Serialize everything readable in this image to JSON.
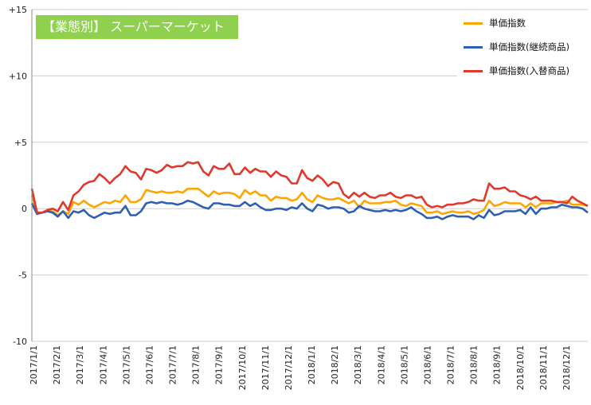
{
  "chart_data": {
    "type": "line",
    "title": "【業態別】 スーパーマーケット",
    "title_bg_color": "#8fd14f",
    "ylim": [
      -10,
      15
    ],
    "y_ticks": [
      15,
      10,
      5,
      0,
      -5,
      -10
    ],
    "y_tick_labels": [
      "+15",
      "+10",
      "+5",
      "0",
      "-5",
      "-10"
    ],
    "grid": "horizontal",
    "legend_position": "top-right",
    "x_tick_labels": [
      "2017/1/1",
      "2017/2/1",
      "2017/3/1",
      "2017/4/1",
      "2017/5/1",
      "2017/6/1",
      "2017/7/1",
      "2017/8/1",
      "2017/9/1",
      "2017/10/1",
      "2017/11/1",
      "2017/12/1",
      "2018/1/1",
      "2018/2/1",
      "2018/3/1",
      "2018/4/1",
      "2018/5/1",
      "2018/6/1",
      "2018/7/1",
      "2018/8/1",
      "2018/9/1",
      "2018/10/1",
      "2018/11/1",
      "2018/12/1"
    ],
    "x_interval": "weekly (2017/1/1 – 2018/12/31)",
    "series": [
      {
        "name": "単価指数",
        "color": "#ffa500",
        "values": [
          1.0,
          -0.3,
          -0.3,
          -0.2,
          -0.2,
          -0.5,
          -0.2,
          -0.4,
          0.5,
          0.3,
          0.6,
          0.3,
          0.1,
          0.3,
          0.5,
          0.4,
          0.6,
          0.5,
          1.0,
          0.5,
          0.5,
          0.7,
          1.4,
          1.3,
          1.2,
          1.3,
          1.2,
          1.2,
          1.3,
          1.2,
          1.5,
          1.5,
          1.5,
          1.2,
          0.9,
          1.3,
          1.1,
          1.2,
          1.2,
          1.1,
          0.8,
          1.4,
          1.1,
          1.3,
          1.0,
          1.0,
          0.6,
          0.9,
          0.8,
          0.8,
          0.6,
          0.7,
          1.2,
          0.7,
          0.5,
          1.0,
          0.8,
          0.7,
          0.7,
          0.8,
          0.6,
          0.4,
          0.6,
          0.1,
          0.6,
          0.4,
          0.4,
          0.4,
          0.5,
          0.5,
          0.6,
          0.3,
          0.2,
          0.4,
          0.3,
          0.2,
          -0.3,
          -0.3,
          -0.2,
          -0.4,
          -0.3,
          -0.2,
          -0.3,
          -0.3,
          -0.2,
          -0.4,
          -0.3,
          -0.1,
          0.6,
          0.2,
          0.3,
          0.5,
          0.4,
          0.4,
          0.4,
          0.1,
          0.4,
          0.1,
          0.4,
          0.4,
          0.4,
          0.5,
          0.5,
          0.6,
          0.3,
          0.3,
          0.3,
          0.2
        ]
      },
      {
        "name": "単価指数(継続商品)",
        "color": "#2e5fb5",
        "values": [
          0.4,
          -0.4,
          -0.3,
          -0.2,
          -0.3,
          -0.6,
          -0.2,
          -0.7,
          -0.2,
          -0.3,
          -0.1,
          -0.5,
          -0.7,
          -0.5,
          -0.3,
          -0.4,
          -0.3,
          -0.3,
          0.2,
          -0.5,
          -0.5,
          -0.2,
          0.4,
          0.5,
          0.4,
          0.5,
          0.4,
          0.4,
          0.3,
          0.4,
          0.6,
          0.5,
          0.3,
          0.1,
          0.0,
          0.4,
          0.4,
          0.3,
          0.3,
          0.2,
          0.2,
          0.5,
          0.2,
          0.4,
          0.1,
          -0.1,
          -0.1,
          0.0,
          0.0,
          -0.1,
          0.1,
          0.0,
          0.4,
          0.0,
          -0.2,
          0.3,
          0.2,
          0.0,
          0.1,
          0.1,
          0.0,
          -0.3,
          -0.2,
          0.2,
          0.0,
          -0.1,
          -0.2,
          -0.2,
          -0.1,
          -0.2,
          -0.1,
          -0.2,
          -0.1,
          0.1,
          -0.2,
          -0.4,
          -0.7,
          -0.7,
          -0.6,
          -0.8,
          -0.6,
          -0.5,
          -0.6,
          -0.6,
          -0.6,
          -0.8,
          -0.5,
          -0.7,
          -0.1,
          -0.5,
          -0.4,
          -0.2,
          -0.2,
          -0.2,
          -0.1,
          -0.4,
          0.1,
          -0.4,
          0.0,
          0.0,
          0.1,
          0.1,
          0.3,
          0.2,
          0.1,
          0.1,
          0.0,
          -0.3
        ]
      },
      {
        "name": "単価指数(入替商品)",
        "color": "#e0392b",
        "values": [
          1.5,
          -0.3,
          -0.3,
          -0.1,
          0.0,
          -0.2,
          0.5,
          -0.1,
          1.0,
          1.3,
          1.8,
          2.0,
          2.1,
          2.6,
          2.3,
          1.9,
          2.3,
          2.6,
          3.2,
          2.8,
          2.7,
          2.2,
          3.0,
          2.9,
          2.7,
          2.9,
          3.3,
          3.1,
          3.2,
          3.2,
          3.5,
          3.4,
          3.5,
          2.8,
          2.5,
          3.2,
          3.0,
          3.0,
          3.4,
          2.6,
          2.6,
          3.1,
          2.7,
          3.0,
          2.8,
          2.8,
          2.4,
          2.8,
          2.5,
          2.4,
          1.9,
          1.9,
          2.9,
          2.3,
          2.1,
          2.5,
          2.2,
          1.7,
          2.0,
          1.9,
          1.1,
          0.8,
          1.2,
          0.9,
          1.2,
          0.9,
          0.8,
          1.0,
          1.0,
          1.2,
          0.9,
          0.8,
          1.0,
          1.0,
          0.8,
          0.9,
          0.3,
          0.1,
          0.2,
          0.1,
          0.3,
          0.3,
          0.4,
          0.4,
          0.5,
          0.7,
          0.6,
          0.6,
          1.9,
          1.5,
          1.5,
          1.6,
          1.3,
          1.3,
          1.0,
          0.9,
          0.7,
          0.9,
          0.6,
          0.6,
          0.6,
          0.5,
          0.5,
          0.4,
          0.9,
          0.6,
          0.4,
          0.2
        ]
      }
    ]
  }
}
